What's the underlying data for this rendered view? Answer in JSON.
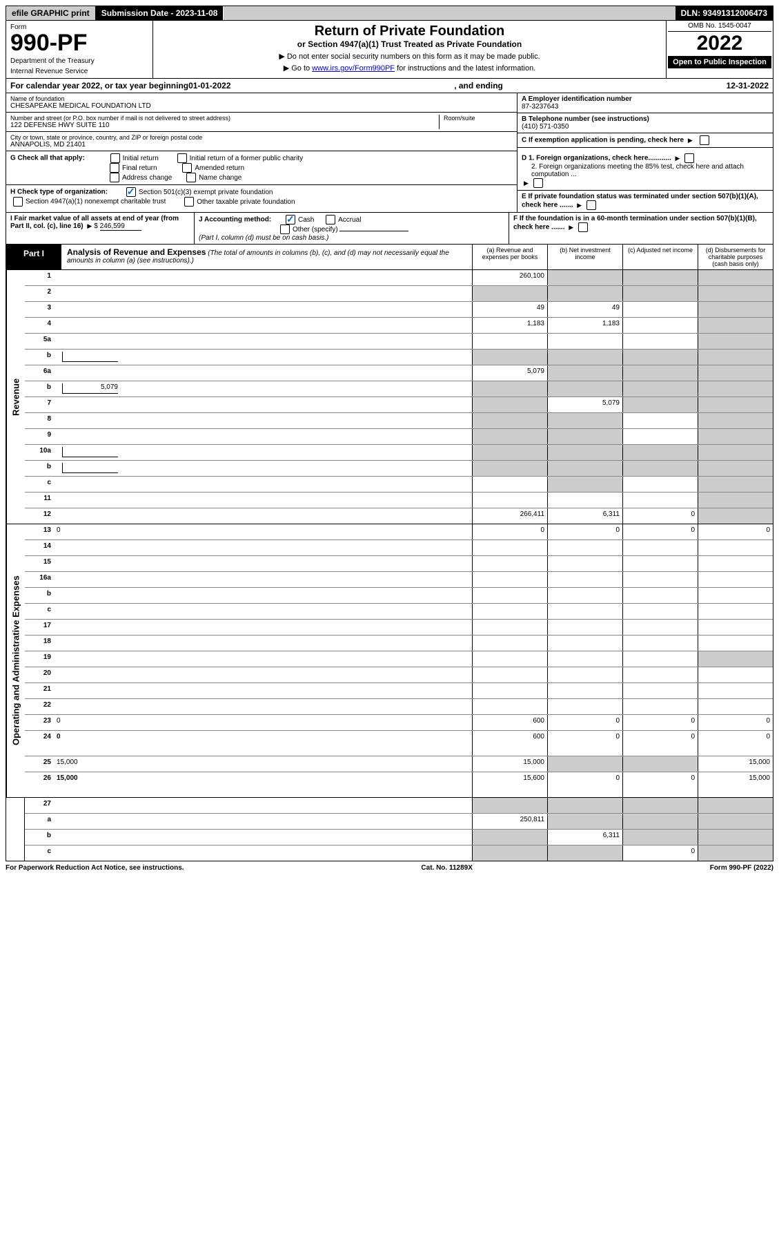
{
  "top": {
    "efile": "efile GRAPHIC print",
    "submission": "Submission Date - 2023-11-08",
    "dln": "DLN: 93491312006473"
  },
  "header": {
    "form_label": "Form",
    "form_number": "990-PF",
    "dept1": "Department of the Treasury",
    "dept2": "Internal Revenue Service",
    "title": "Return of Private Foundation",
    "subtitle": "or Section 4947(a)(1) Trust Treated as Private Foundation",
    "note1": "▶ Do not enter social security numbers on this form as it may be made public.",
    "note2_pre": "▶ Go to ",
    "note2_link": "www.irs.gov/Form990PF",
    "note2_post": " for instructions and the latest information.",
    "omb": "OMB No. 1545-0047",
    "year": "2022",
    "open": "Open to Public Inspection"
  },
  "calendar": {
    "pre": "For calendar year 2022, or tax year beginning ",
    "begin": "01-01-2022",
    "mid": ", and ending ",
    "end": "12-31-2022"
  },
  "info": {
    "name_label": "Name of foundation",
    "name": "CHESAPEAKE MEDICAL FOUNDATION LTD",
    "addr_label": "Number and street (or P.O. box number if mail is not delivered to street address)",
    "addr": "122 DEFENSE HWY SUITE 110",
    "room_label": "Room/suite",
    "city_label": "City or town, state or province, country, and ZIP or foreign postal code",
    "city": "ANNAPOLIS, MD  21401",
    "a_label": "A Employer identification number",
    "a_val": "87-3237643",
    "b_label": "B Telephone number (see instructions)",
    "b_val": "(410) 571-0350",
    "c_label": "C If exemption application is pending, check here",
    "d1": "D 1. Foreign organizations, check here............",
    "d2": "2. Foreign organizations meeting the 85% test, check here and attach computation ...",
    "e": "E  If private foundation status was terminated under section 507(b)(1)(A), check here .......",
    "f": "F  If the foundation is in a 60-month termination under section 507(b)(1)(B), check here .......",
    "g_label": "G Check all that apply:",
    "g_opts": [
      "Initial return",
      "Initial return of a former public charity",
      "Final return",
      "Amended return",
      "Address change",
      "Name change"
    ],
    "h_label": "H Check type of organization:",
    "h_opt1": "Section 501(c)(3) exempt private foundation",
    "h_opt2": "Section 4947(a)(1) nonexempt charitable trust",
    "h_opt3": "Other taxable private foundation",
    "i_label": "I Fair market value of all assets at end of year (from Part II, col. (c), line 16)",
    "i_val": "246,599",
    "j_label": "J Accounting method:",
    "j_cash": "Cash",
    "j_accrual": "Accrual",
    "j_other": "Other (specify)",
    "j_note": "(Part I, column (d) must be on cash basis.)"
  },
  "part1": {
    "label": "Part I",
    "title": "Analysis of Revenue and Expenses",
    "note": " (The total of amounts in columns (b), (c), and (d) may not necessarily equal the amounts in column (a) (see instructions).)",
    "col_a": "(a)  Revenue and expenses per books",
    "col_b": "(b)  Net investment income",
    "col_c": "(c)  Adjusted net income",
    "col_d": "(d)  Disbursements for charitable purposes (cash basis only)"
  },
  "sidelabels": {
    "revenue": "Revenue",
    "expenses": "Operating and Administrative Expenses"
  },
  "rows": [
    {
      "n": "1",
      "d": "",
      "a": "260,100",
      "b": "",
      "c": "",
      "sb": true,
      "sc": true,
      "sd": true
    },
    {
      "n": "2",
      "d": "",
      "a": "",
      "b": "",
      "c": "",
      "sa": true,
      "sb": true,
      "sc": true,
      "sd": true
    },
    {
      "n": "3",
      "d": "",
      "a": "49",
      "b": "49",
      "c": "",
      "sd": true
    },
    {
      "n": "4",
      "d": "",
      "a": "1,183",
      "b": "1,183",
      "c": "",
      "sd": true
    },
    {
      "n": "5a",
      "d": "",
      "a": "",
      "b": "",
      "c": "",
      "sd": true
    },
    {
      "n": "b",
      "d": "",
      "a": "",
      "b": "",
      "c": "",
      "inlinebox": true,
      "sa": true,
      "sb": true,
      "sc": true,
      "sd": true
    },
    {
      "n": "6a",
      "d": "",
      "a": "5,079",
      "b": "",
      "c": "",
      "sb": true,
      "sc": true,
      "sd": true
    },
    {
      "n": "b",
      "d": "",
      "a": "",
      "b": "",
      "c": "",
      "inlineval": "5,079",
      "sa": true,
      "sb": true,
      "sc": true,
      "sd": true
    },
    {
      "n": "7",
      "d": "",
      "a": "",
      "b": "5,079",
      "c": "",
      "sa": true,
      "sc": true,
      "sd": true
    },
    {
      "n": "8",
      "d": "",
      "a": "",
      "b": "",
      "c": "",
      "sa": true,
      "sb": true,
      "sd": true
    },
    {
      "n": "9",
      "d": "",
      "a": "",
      "b": "",
      "c": "",
      "sa": true,
      "sb": true,
      "sd": true
    },
    {
      "n": "10a",
      "d": "",
      "a": "",
      "b": "",
      "c": "",
      "inlinebox": true,
      "sa": true,
      "sb": true,
      "sc": true,
      "sd": true
    },
    {
      "n": "b",
      "d": "",
      "a": "",
      "b": "",
      "c": "",
      "inlinebox": true,
      "sa": true,
      "sb": true,
      "sc": true,
      "sd": true
    },
    {
      "n": "c",
      "d": "",
      "a": "",
      "b": "",
      "c": "",
      "sb": true,
      "sd": true
    },
    {
      "n": "11",
      "d": "",
      "a": "",
      "b": "",
      "c": "",
      "sd": true
    },
    {
      "n": "12",
      "d": "",
      "a": "266,411",
      "b": "6,311",
      "c": "0",
      "bold": true,
      "sd": true
    }
  ],
  "exp_rows": [
    {
      "n": "13",
      "d": "0",
      "a": "0",
      "b": "0",
      "c": "0"
    },
    {
      "n": "14",
      "d": "",
      "a": "",
      "b": "",
      "c": ""
    },
    {
      "n": "15",
      "d": "",
      "a": "",
      "b": "",
      "c": ""
    },
    {
      "n": "16a",
      "d": "",
      "a": "",
      "b": "",
      "c": ""
    },
    {
      "n": "b",
      "d": "",
      "a": "",
      "b": "",
      "c": ""
    },
    {
      "n": "c",
      "d": "",
      "a": "",
      "b": "",
      "c": ""
    },
    {
      "n": "17",
      "d": "",
      "a": "",
      "b": "",
      "c": ""
    },
    {
      "n": "18",
      "d": "",
      "a": "",
      "b": "",
      "c": ""
    },
    {
      "n": "19",
      "d": "",
      "a": "",
      "b": "",
      "c": "",
      "sd": true
    },
    {
      "n": "20",
      "d": "",
      "a": "",
      "b": "",
      "c": ""
    },
    {
      "n": "21",
      "d": "",
      "a": "",
      "b": "",
      "c": ""
    },
    {
      "n": "22",
      "d": "",
      "a": "",
      "b": "",
      "c": ""
    },
    {
      "n": "23",
      "d": "0",
      "a": "600",
      "b": "0",
      "c": "0"
    },
    {
      "n": "24",
      "d": "0",
      "a": "600",
      "b": "0",
      "c": "0",
      "bold": true,
      "tall": true
    },
    {
      "n": "25",
      "d": "15,000",
      "a": "15,000",
      "b": "",
      "c": "",
      "sb": true,
      "sc": true
    },
    {
      "n": "26",
      "d": "15,000",
      "a": "15,600",
      "b": "0",
      "c": "0",
      "bold": true,
      "tall": true
    }
  ],
  "bottom_rows": [
    {
      "n": "27",
      "d": "",
      "a": "",
      "b": "",
      "c": "",
      "sa": true,
      "sb": true,
      "sc": true,
      "sd": true
    },
    {
      "n": "a",
      "d": "",
      "a": "250,811",
      "b": "",
      "c": "",
      "bold": true,
      "sb": true,
      "sc": true,
      "sd": true
    },
    {
      "n": "b",
      "d": "",
      "a": "",
      "b": "6,311",
      "c": "",
      "bold": true,
      "sa": true,
      "sc": true,
      "sd": true
    },
    {
      "n": "c",
      "d": "",
      "a": "",
      "b": "",
      "c": "0",
      "bold": true,
      "sa": true,
      "sb": true,
      "sd": true
    }
  ],
  "footer": {
    "left": "For Paperwork Reduction Act Notice, see instructions.",
    "center": "Cat. No. 11289X",
    "right": "Form 990-PF (2022)"
  }
}
